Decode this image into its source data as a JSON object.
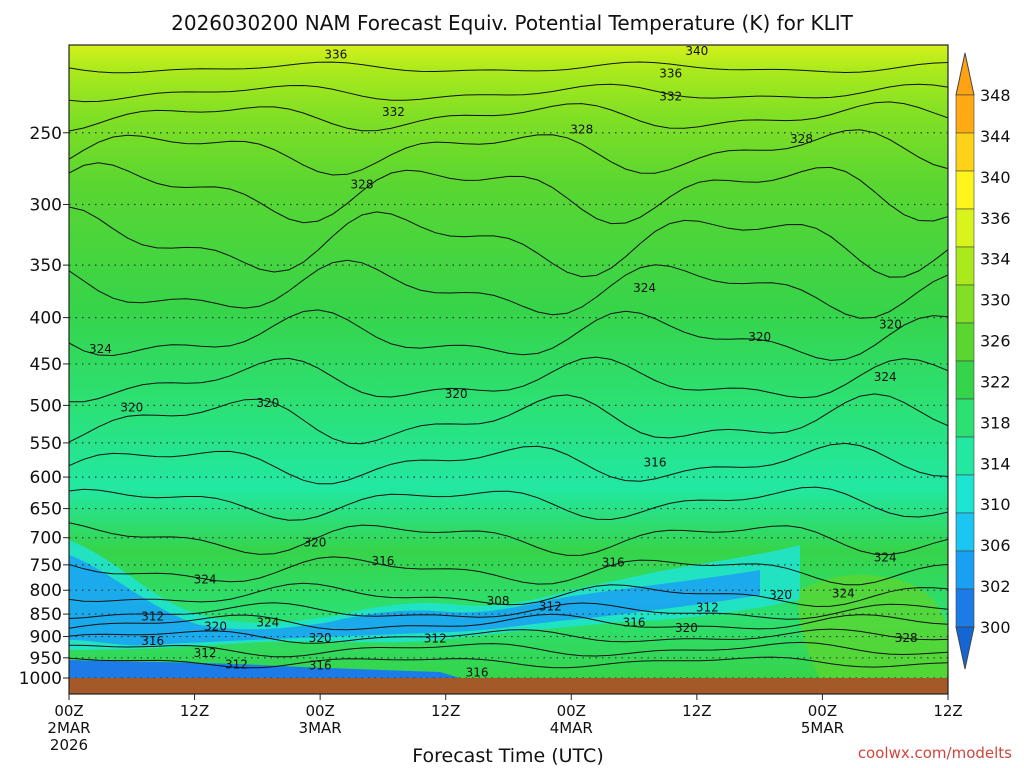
{
  "chart_data": {
    "type": "heatmap",
    "title": "2026030200 NAM Forecast Equiv. Potential Temperature (K) for KLIT",
    "xlabel": "Forecast Time (UTC)",
    "ylabel": "",
    "x_ticks": [
      {
        "lines": [
          "00Z",
          "2MAR",
          "2026"
        ]
      },
      {
        "lines": [
          "12Z"
        ]
      },
      {
        "lines": [
          "00Z",
          "3MAR"
        ]
      },
      {
        "lines": [
          "12Z"
        ]
      },
      {
        "lines": [
          "00Z",
          "4MAR"
        ]
      },
      {
        "lines": [
          "12Z"
        ]
      },
      {
        "lines": [
          "00Z",
          "5MAR"
        ]
      },
      {
        "lines": [
          "12Z"
        ]
      }
    ],
    "x_range_hours": [
      0,
      84
    ],
    "y_ticks": [
      250,
      300,
      350,
      400,
      450,
      500,
      550,
      600,
      650,
      700,
      750,
      800,
      850,
      900,
      950,
      1000
    ],
    "y_range": [
      1000,
      200
    ],
    "y_scale": "log-pressure",
    "colorbar": {
      "ticks": [
        300,
        302,
        306,
        310,
        314,
        318,
        322,
        326,
        330,
        334,
        336,
        340,
        344,
        348
      ],
      "bins": [
        {
          "lo": 298,
          "hi": 302,
          "color": "#1c7be6"
        },
        {
          "lo": 302,
          "hi": 306,
          "color": "#1aa0f2"
        },
        {
          "lo": 306,
          "hi": 310,
          "color": "#1cc6f3"
        },
        {
          "lo": 310,
          "hi": 314,
          "color": "#1ee4d4"
        },
        {
          "lo": 314,
          "hi": 318,
          "color": "#22e8a2"
        },
        {
          "lo": 318,
          "hi": 322,
          "color": "#2ce072"
        },
        {
          "lo": 322,
          "hi": 326,
          "color": "#36d44a"
        },
        {
          "lo": 326,
          "hi": 330,
          "color": "#5ad631"
        },
        {
          "lo": 330,
          "hi": 334,
          "color": "#82e024"
        },
        {
          "lo": 334,
          "hi": 336,
          "color": "#aaea1c"
        },
        {
          "lo": 336,
          "hi": 340,
          "color": "#d8f41c"
        },
        {
          "lo": 340,
          "hi": 344,
          "color": "#fff51c"
        },
        {
          "lo": 344,
          "hi": 348,
          "color": "#ffd21a"
        },
        {
          "lo": 348,
          "hi": 352,
          "color": "#ffaa14"
        }
      ],
      "under_color": "#1466d4",
      "over_color": "#ffa214"
    },
    "contour_interval_K": 2,
    "contour_labels": [
      {
        "value": 336,
        "hour": 25.5,
        "p": 205
      },
      {
        "value": 340,
        "hour": 60,
        "p": 203
      },
      {
        "value": 336,
        "hour": 57.5,
        "p": 215
      },
      {
        "value": 332,
        "hour": 57.5,
        "p": 228
      },
      {
        "value": 332,
        "hour": 31,
        "p": 237
      },
      {
        "value": 328,
        "hour": 49,
        "p": 248
      },
      {
        "value": 328,
        "hour": 70,
        "p": 254
      },
      {
        "value": 328,
        "hour": 28,
        "p": 285
      },
      {
        "value": 324,
        "hour": 55,
        "p": 371
      },
      {
        "value": 320,
        "hour": 66,
        "p": 420
      },
      {
        "value": 320,
        "hour": 78.5,
        "p": 407
      },
      {
        "value": 324,
        "hour": 78,
        "p": 465
      },
      {
        "value": 324,
        "hour": 3,
        "p": 433
      },
      {
        "value": 320,
        "hour": 6,
        "p": 503
      },
      {
        "value": 320,
        "hour": 19,
        "p": 497
      },
      {
        "value": 320,
        "hour": 37,
        "p": 486
      },
      {
        "value": 316,
        "hour": 56,
        "p": 578
      },
      {
        "value": 320,
        "hour": 23.5,
        "p": 709
      },
      {
        "value": 316,
        "hour": 30,
        "p": 743
      },
      {
        "value": 316,
        "hour": 52,
        "p": 746
      },
      {
        "value": 324,
        "hour": 13,
        "p": 778
      },
      {
        "value": 324,
        "hour": 78,
        "p": 736
      },
      {
        "value": 324,
        "hour": 74,
        "p": 807
      },
      {
        "value": 320,
        "hour": 68,
        "p": 810
      },
      {
        "value": 308,
        "hour": 41,
        "p": 822
      },
      {
        "value": 312,
        "hour": 46,
        "p": 834
      },
      {
        "value": 312,
        "hour": 61,
        "p": 836
      },
      {
        "value": 316,
        "hour": 54,
        "p": 868
      },
      {
        "value": 320,
        "hour": 59,
        "p": 881
      },
      {
        "value": 312,
        "hour": 8,
        "p": 855
      },
      {
        "value": 320,
        "hour": 14,
        "p": 877
      },
      {
        "value": 324,
        "hour": 19,
        "p": 868
      },
      {
        "value": 320,
        "hour": 24,
        "p": 903
      },
      {
        "value": 312,
        "hour": 35,
        "p": 905
      },
      {
        "value": 316,
        "hour": 8,
        "p": 910
      },
      {
        "value": 312,
        "hour": 13,
        "p": 938
      },
      {
        "value": 312,
        "hour": 16,
        "p": 966
      },
      {
        "value": 316,
        "hour": 24,
        "p": 969
      },
      {
        "value": 316,
        "hour": 39,
        "p": 986
      },
      {
        "value": 328,
        "hour": 80,
        "p": 903
      }
    ]
  },
  "credit": "coolwx.com/modelts"
}
